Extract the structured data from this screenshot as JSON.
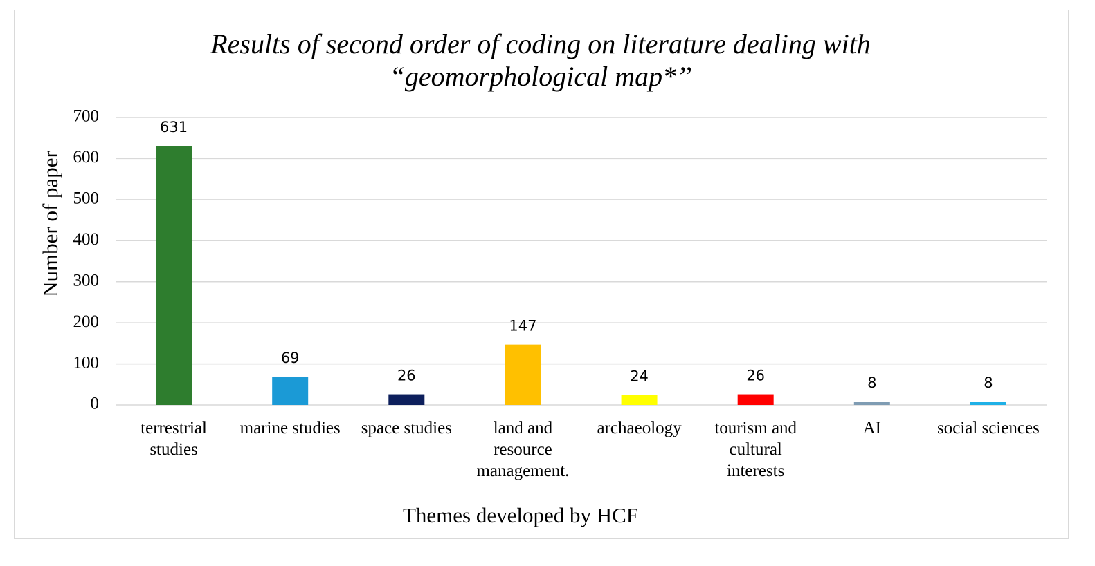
{
  "chart_data": {
    "type": "bar",
    "title_lines": [
      "Results of second order of coding on literature dealing with",
      "“geomorphological map*’’"
    ],
    "xlabel": "Themes developed by HCF",
    "ylabel": "Number of paper",
    "ylim": [
      0,
      700
    ],
    "yticks": [
      0,
      100,
      200,
      300,
      400,
      500,
      600,
      700
    ],
    "grid": true,
    "legend": "none",
    "categories": [
      [
        "terrestrial",
        "studies"
      ],
      [
        "marine studies"
      ],
      [
        "space studies"
      ],
      [
        "land and",
        "resource",
        "management."
      ],
      [
        "archaeology"
      ],
      [
        "tourism and",
        "cultural",
        "interests"
      ],
      [
        "AI"
      ],
      [
        "social sciences"
      ]
    ],
    "values": [
      631,
      69,
      26,
      147,
      24,
      26,
      8,
      8
    ],
    "colors": [
      "#2e7d2e",
      "#1b9ad6",
      "#0d1f5c",
      "#ffc000",
      "#ffff00",
      "#ff0000",
      "#7f9cb3",
      "#1fb0e6"
    ]
  }
}
